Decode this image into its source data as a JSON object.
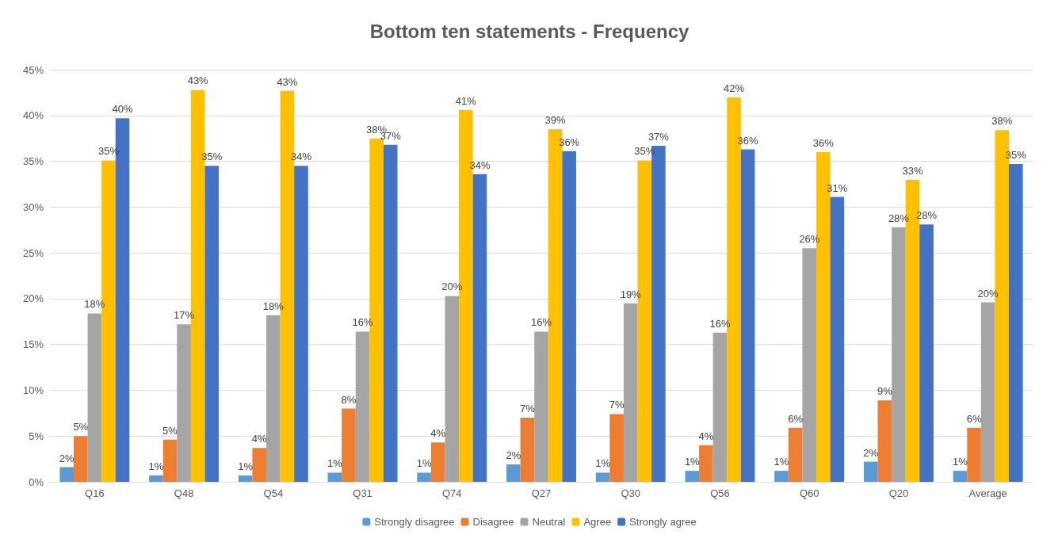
{
  "chart_data": {
    "type": "bar",
    "title": "Bottom ten statements - Frequency",
    "categories": [
      "Q16",
      "Q48",
      "Q54",
      "Q31",
      "Q74",
      "Q27",
      "Q30",
      "Q56",
      "Q60",
      "Q20",
      "Average"
    ],
    "series": [
      {
        "name": "Strongly disagree",
        "color": "#5b9bd5",
        "values": [
          1.6,
          0.7,
          0.7,
          1.0,
          1.0,
          1.9,
          1.0,
          1.2,
          1.2,
          2.2,
          1.2
        ],
        "value_labels": [
          "2%",
          "1%",
          "1%",
          "1%",
          "1%",
          "2%",
          "1%",
          "1%",
          "1%",
          "2%",
          "1%"
        ]
      },
      {
        "name": "Disagree",
        "color": "#ed7d31",
        "values": [
          5.0,
          4.6,
          3.7,
          8.0,
          4.3,
          7.0,
          7.4,
          4.0,
          5.9,
          8.9,
          5.9
        ],
        "value_labels": [
          "5%",
          "5%",
          "4%",
          "8%",
          "4%",
          "7%",
          "7%",
          "4%",
          "6%",
          "9%",
          "6%"
        ]
      },
      {
        "name": "Neutral",
        "color": "#a5a5a5",
        "values": [
          18.4,
          17.2,
          18.2,
          16.4,
          20.3,
          16.4,
          19.5,
          16.3,
          25.5,
          27.8,
          19.6
        ],
        "value_labels": [
          "18%",
          "17%",
          "18%",
          "16%",
          "20%",
          "16%",
          "19%",
          "16%",
          "26%",
          "28%",
          "20%"
        ]
      },
      {
        "name": "Agree",
        "color": "#ffc000",
        "values": [
          35.1,
          42.8,
          42.7,
          37.5,
          40.6,
          38.5,
          35.1,
          42.0,
          36.0,
          33.0,
          38.4
        ],
        "value_labels": [
          "35%",
          "43%",
          "43%",
          "38%",
          "41%",
          "39%",
          "35%",
          "42%",
          "36%",
          "33%",
          "38%"
        ]
      },
      {
        "name": "Strongly agree",
        "color": "#4472c4",
        "values": [
          39.7,
          34.5,
          34.5,
          36.8,
          33.6,
          36.1,
          36.7,
          36.3,
          31.1,
          28.1,
          34.7
        ],
        "value_labels": [
          "40%",
          "35%",
          "34%",
          "37%",
          "34%",
          "36%",
          "37%",
          "36%",
          "31%",
          "28%",
          "35%"
        ]
      }
    ],
    "ylim": [
      0,
      45
    ],
    "yticks": [
      {
        "value": 0,
        "label": "0%"
      },
      {
        "value": 5,
        "label": "5%"
      },
      {
        "value": 10,
        "label": "10%"
      },
      {
        "value": 15,
        "label": "15%"
      },
      {
        "value": 20,
        "label": "20%"
      },
      {
        "value": 25,
        "label": "25%"
      },
      {
        "value": 30,
        "label": "30%"
      },
      {
        "value": 35,
        "label": "35%"
      },
      {
        "value": 40,
        "label": "40%"
      },
      {
        "value": 45,
        "label": "45%"
      }
    ],
    "grid": "y",
    "legend": "bottom"
  }
}
